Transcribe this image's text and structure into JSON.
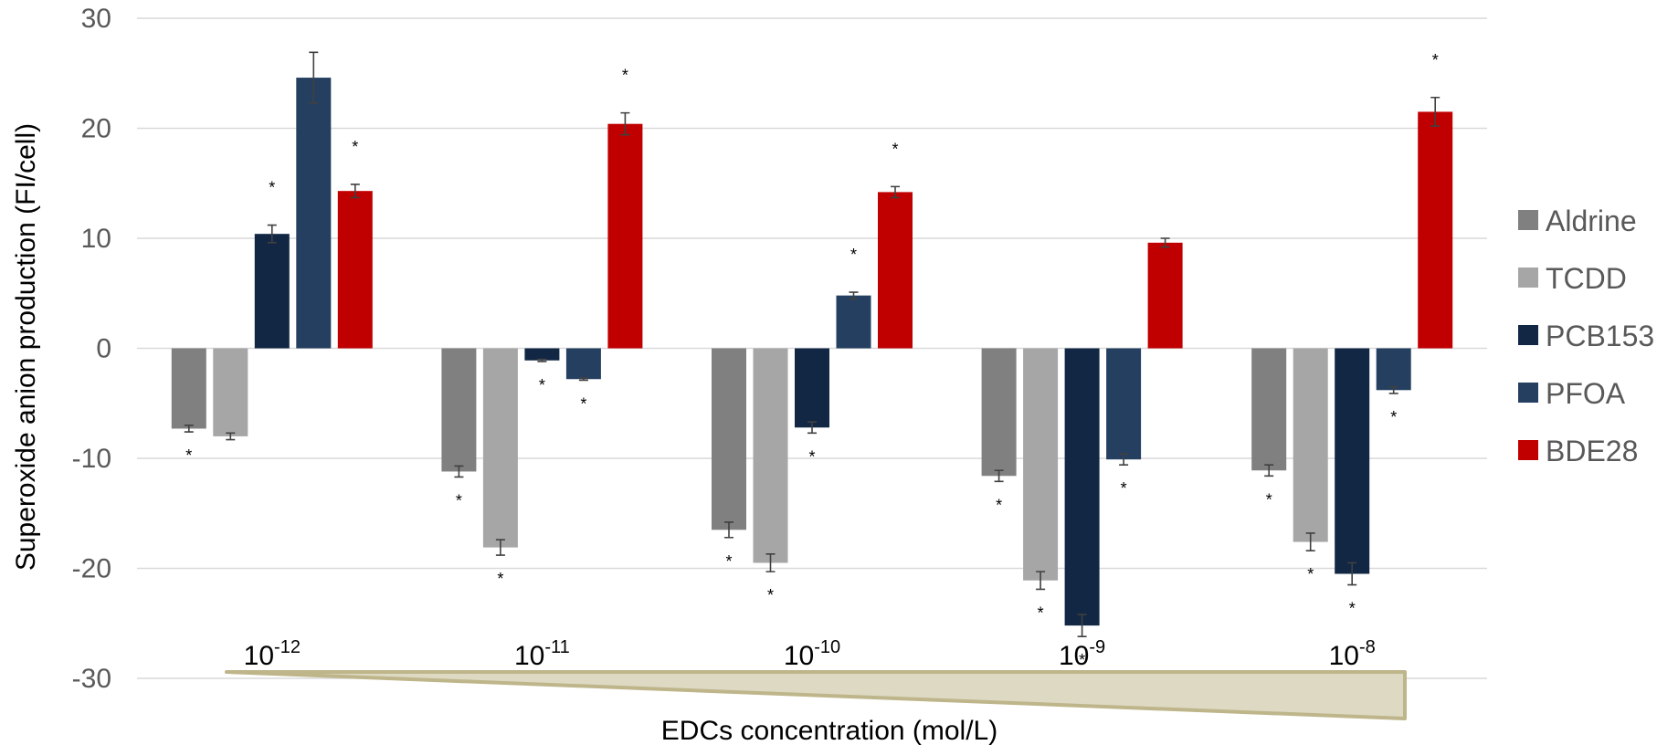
{
  "chart_data": {
    "type": "bar",
    "ylabel": "Superoxide anion production (FI/cell)",
    "xlabel": "EDCs concentration (mol/L)",
    "ylim": [
      -30,
      30
    ],
    "yticks": [
      "30",
      "20",
      "10",
      "0",
      "-10",
      "-20",
      "-30"
    ],
    "grid": true,
    "legend_position": "right",
    "categories": [
      {
        "base": "10",
        "exp": "-12"
      },
      {
        "base": "10",
        "exp": "-11"
      },
      {
        "base": "10",
        "exp": "-10"
      },
      {
        "base": "10",
        "exp": "-9"
      },
      {
        "base": "10",
        "exp": "-8"
      }
    ],
    "significance_marker": "*",
    "series": [
      {
        "name": "Aldrine",
        "color": "#808080",
        "values": [
          -7.3,
          -11.2,
          -16.5,
          -11.6,
          -11.1
        ],
        "errors": [
          0.3,
          0.5,
          0.7,
          0.5,
          0.5
        ],
        "significant": [
          true,
          true,
          true,
          true,
          true
        ]
      },
      {
        "name": "TCDD",
        "color": "#a6a6a6",
        "values": [
          -8.0,
          -18.1,
          -19.5,
          -21.1,
          -17.6
        ],
        "errors": [
          0.3,
          0.7,
          0.8,
          0.8,
          0.8
        ],
        "significant": [
          false,
          true,
          true,
          true,
          true
        ]
      },
      {
        "name": "PCB153",
        "color": "#112744",
        "values": [
          10.4,
          -1.1,
          -7.2,
          -25.2,
          -20.5
        ],
        "errors": [
          0.8,
          0.1,
          0.5,
          1.0,
          1.0
        ],
        "significant": [
          true,
          true,
          true,
          true,
          true
        ]
      },
      {
        "name": "PFOA",
        "color": "#243f60",
        "values": [
          24.6,
          -2.8,
          4.8,
          -10.1,
          -3.8
        ],
        "errors": [
          2.3,
          0.1,
          0.3,
          0.5,
          0.3
        ],
        "significant": [
          false,
          true,
          true,
          true,
          true
        ]
      },
      {
        "name": "BDE28",
        "color": "#c00000",
        "values": [
          14.3,
          20.4,
          14.2,
          9.6,
          21.5
        ],
        "errors": [
          0.6,
          1.0,
          0.5,
          0.4,
          1.3
        ],
        "significant": [
          true,
          true,
          true,
          false,
          true
        ]
      }
    ]
  }
}
